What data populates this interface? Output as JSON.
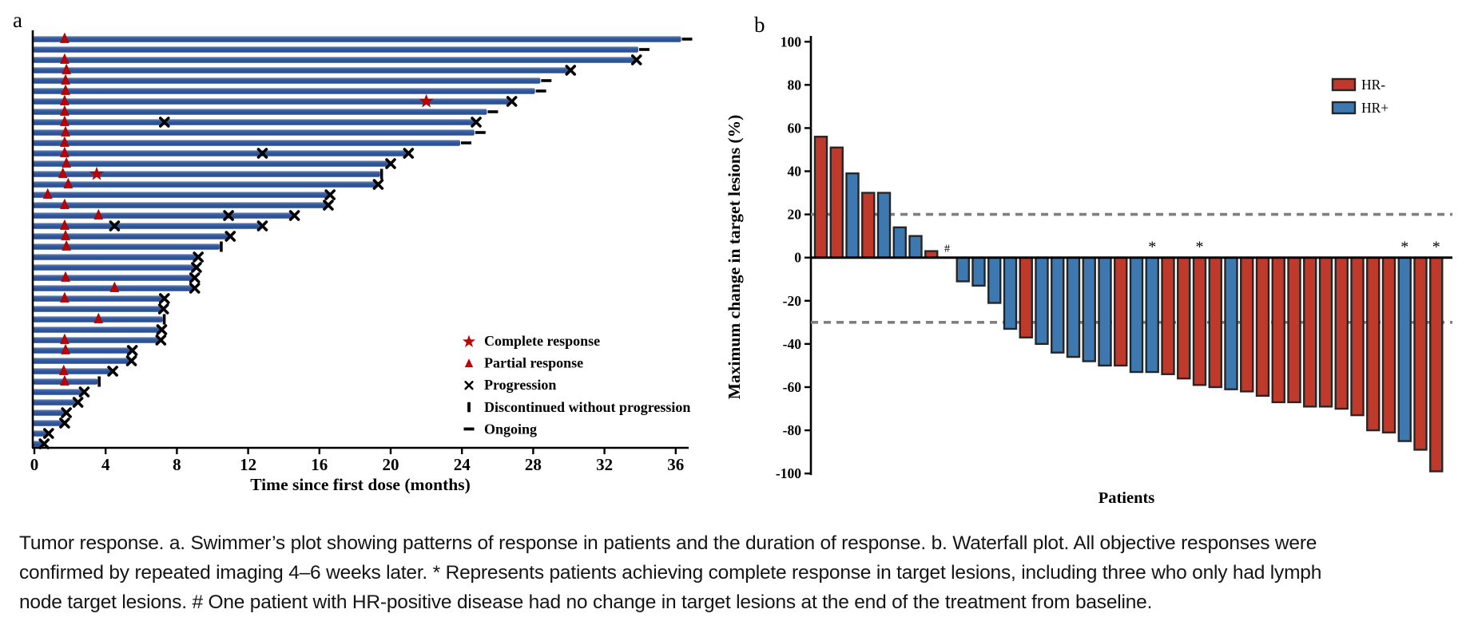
{
  "figure": {
    "panel_a_label": "a",
    "panel_b_label": "b"
  },
  "caption": {
    "text": "Tumor response. a. Swimmer’s plot showing patterns of response in patients and the duration of response. b. Waterfall plot. All objective responses were\nconfirmed by repeated imaging 4–6 weeks later. * Represents patients achieving complete response in target lesions, including three who only had lymph\nnode target lesions. # One patient with HR-positive disease had no change in target lesions at the end of the treatment from baseline."
  },
  "colors": {
    "swimmer_bar": "#2d549c",
    "swimmer_bar_light": "#8ea4cc",
    "response_marker": "#c00000",
    "hr_negative": "#c03a2c",
    "hr_positive": "#3d79b0",
    "bar_outline": "#262626",
    "reference_line": "#7f7f7f",
    "axis": "#000000"
  },
  "chart_data": [
    {
      "type": "bar",
      "variant": "swimmer",
      "panel_label": "a",
      "xlabel": "Time since first dose (months)",
      "x_ticks": [
        0,
        4,
        8,
        12,
        16,
        20,
        24,
        28,
        32,
        36
      ],
      "xlim": [
        0,
        37.6
      ],
      "grid": false,
      "legend_position": "right-middle",
      "legend": [
        {
          "symbol": "star",
          "label": "Complete response"
        },
        {
          "symbol": "triangle",
          "label": "Partial response"
        },
        {
          "symbol": "x",
          "label": "Progression"
        },
        {
          "symbol": "bar",
          "label": "Discontinued without progression"
        },
        {
          "symbol": "dash",
          "label": "Ongoing"
        }
      ],
      "marker_meanings": {
        "pr": "partial response (months)",
        "cr": "complete response (months)",
        "prog": "interim progression (months)",
        "end": "ongoing | progression | discontinued"
      },
      "patients": [
        {
          "duration": 36.3,
          "end": "ongoing",
          "pr": 1.7
        },
        {
          "duration": 33.9,
          "end": "ongoing"
        },
        {
          "duration": 33.8,
          "end": "progression",
          "pr": 1.7
        },
        {
          "duration": 30.1,
          "end": "progression",
          "pr": 1.8
        },
        {
          "duration": 28.4,
          "end": "ongoing",
          "pr": 1.75
        },
        {
          "duration": 28.1,
          "end": "ongoing",
          "pr": 1.75
        },
        {
          "duration": 26.8,
          "end": "progression",
          "pr": 1.7,
          "cr": 22
        },
        {
          "duration": 25.4,
          "end": "ongoing",
          "pr": 1.7
        },
        {
          "duration": 24.8,
          "end": "progression",
          "pr": 1.7,
          "prog": 7.3
        },
        {
          "duration": 24.7,
          "end": "ongoing",
          "pr": 1.75
        },
        {
          "duration": 23.9,
          "end": "ongoing",
          "pr": 1.7
        },
        {
          "duration": 21.0,
          "end": "progression",
          "pr": 1.7,
          "prog": 12.8
        },
        {
          "duration": 20.0,
          "end": "progression",
          "pr": 1.8
        },
        {
          "duration": 19.4,
          "end": "discontinued",
          "pr": 1.6,
          "cr": 3.5
        },
        {
          "duration": 19.3,
          "end": "progression",
          "pr": 1.9
        },
        {
          "duration": 16.6,
          "end": "progression",
          "pr": 0.75
        },
        {
          "duration": 16.5,
          "end": "progression",
          "pr": 1.7
        },
        {
          "duration": 14.6,
          "end": "progression",
          "pr": 3.6,
          "prog": 10.9
        },
        {
          "duration": 12.8,
          "end": "progression",
          "pr": 1.7,
          "prog": 4.5
        },
        {
          "duration": 11.0,
          "end": "progression",
          "pr": 1.75
        },
        {
          "duration": 10.4,
          "end": "discontinued",
          "pr": 1.8
        },
        {
          "duration": 9.2,
          "end": "progression"
        },
        {
          "duration": 9.1,
          "end": "progression"
        },
        {
          "duration": 9.0,
          "end": "progression",
          "pr": 1.75
        },
        {
          "duration": 9.0,
          "end": "progression",
          "pr": 4.5
        },
        {
          "duration": 7.3,
          "end": "progression",
          "pr": 1.7
        },
        {
          "duration": 7.25,
          "end": "progression"
        },
        {
          "duration": 7.2,
          "end": "discontinued",
          "pr": 3.6
        },
        {
          "duration": 7.15,
          "end": "progression"
        },
        {
          "duration": 7.1,
          "end": "progression",
          "pr": 1.7
        },
        {
          "duration": 5.5,
          "end": "progression",
          "pr": 1.75
        },
        {
          "duration": 5.45,
          "end": "progression"
        },
        {
          "duration": 4.4,
          "end": "progression",
          "pr": 1.65
        },
        {
          "duration": 3.55,
          "end": "discontinued",
          "pr": 1.7
        },
        {
          "duration": 2.8,
          "end": "progression"
        },
        {
          "duration": 2.45,
          "end": "progression"
        },
        {
          "duration": 1.8,
          "end": "progression"
        },
        {
          "duration": 1.7,
          "end": "progression"
        },
        {
          "duration": 0.8,
          "end": "progression"
        },
        {
          "duration": 0.55,
          "end": "progression"
        }
      ]
    },
    {
      "type": "bar",
      "variant": "waterfall",
      "panel_label": "b",
      "xlabel": "Patients",
      "ylabel": "Maximum change in target lesions (%)",
      "ylim": [
        -100,
        100
      ],
      "y_ticks": [
        100,
        80,
        60,
        40,
        20,
        0,
        -20,
        -40,
        -60,
        -80,
        -100
      ],
      "reference_lines": [
        20,
        -30
      ],
      "grid": false,
      "legend_position": "top-right",
      "legend": [
        {
          "label": "HR-",
          "color": "#c03a2c"
        },
        {
          "label": "HR+",
          "color": "#3d79b0"
        }
      ],
      "annotations": {
        "*": "complete response in target lesions",
        "#": "no change from baseline (HR-positive)"
      },
      "bars": [
        {
          "value": 56,
          "group": "HR-"
        },
        {
          "value": 51,
          "group": "HR-"
        },
        {
          "value": 39,
          "group": "HR+"
        },
        {
          "value": 30,
          "group": "HR-"
        },
        {
          "value": 30,
          "group": "HR+"
        },
        {
          "value": 14,
          "group": "HR+"
        },
        {
          "value": 10,
          "group": "HR+"
        },
        {
          "value": 3,
          "group": "HR-"
        },
        {
          "value": 0,
          "group": "HR+",
          "note": "#"
        },
        {
          "value": -11,
          "group": "HR+"
        },
        {
          "value": -13,
          "group": "HR+"
        },
        {
          "value": -21,
          "group": "HR+"
        },
        {
          "value": -33,
          "group": "HR+"
        },
        {
          "value": -37,
          "group": "HR-"
        },
        {
          "value": -40,
          "group": "HR+"
        },
        {
          "value": -44,
          "group": "HR+"
        },
        {
          "value": -46,
          "group": "HR+"
        },
        {
          "value": -48,
          "group": "HR+"
        },
        {
          "value": -50,
          "group": "HR+"
        },
        {
          "value": -50,
          "group": "HR-"
        },
        {
          "value": -53,
          "group": "HR+"
        },
        {
          "value": -53,
          "group": "HR+",
          "note": "*"
        },
        {
          "value": -54,
          "group": "HR-"
        },
        {
          "value": -56,
          "group": "HR-"
        },
        {
          "value": -59,
          "group": "HR-",
          "note": "*"
        },
        {
          "value": -60,
          "group": "HR-"
        },
        {
          "value": -61,
          "group": "HR+"
        },
        {
          "value": -62,
          "group": "HR-"
        },
        {
          "value": -64,
          "group": "HR-"
        },
        {
          "value": -67,
          "group": "HR-"
        },
        {
          "value": -67,
          "group": "HR-"
        },
        {
          "value": -69,
          "group": "HR-"
        },
        {
          "value": -69,
          "group": "HR-"
        },
        {
          "value": -70,
          "group": "HR-"
        },
        {
          "value": -73,
          "group": "HR-"
        },
        {
          "value": -80,
          "group": "HR-"
        },
        {
          "value": -81,
          "group": "HR-"
        },
        {
          "value": -85,
          "group": "HR+",
          "note": "*"
        },
        {
          "value": -89,
          "group": "HR-"
        },
        {
          "value": -99,
          "group": "HR-",
          "note": "*"
        }
      ]
    }
  ]
}
